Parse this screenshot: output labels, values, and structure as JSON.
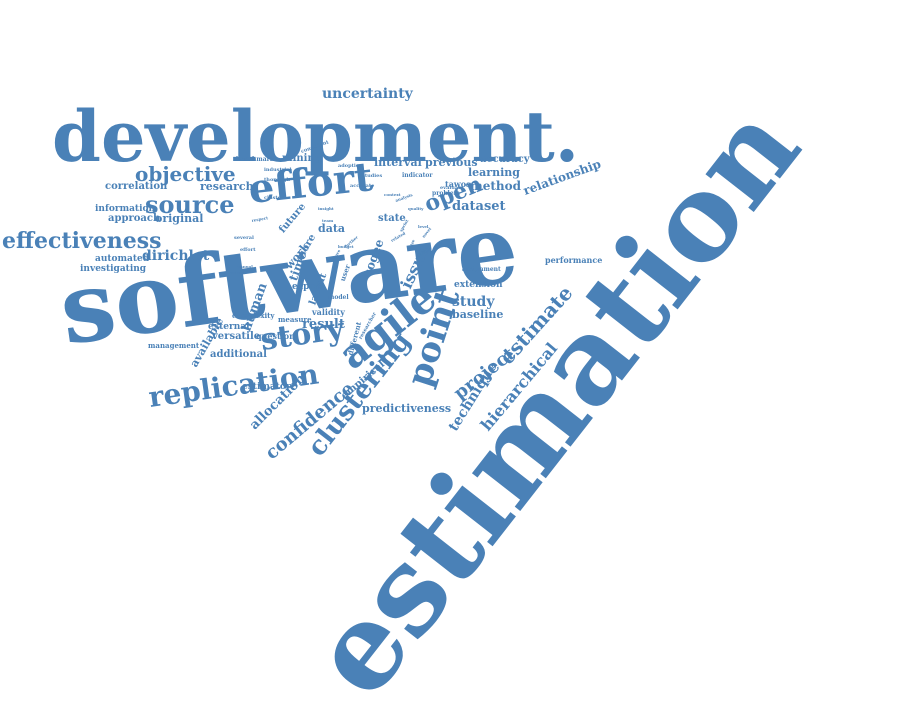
{
  "word_color": "#4a81b7",
  "words": [
    {
      "text": "estimation"
    },
    {
      "text": "software"
    },
    {
      "text": "development."
    },
    {
      "text": "effort"
    },
    {
      "text": "agile"
    },
    {
      "text": "story"
    },
    {
      "text": "replication"
    },
    {
      "text": "effectiveness"
    },
    {
      "text": "point"
    },
    {
      "text": "clustering"
    },
    {
      "text": "source"
    },
    {
      "text": "objective"
    },
    {
      "text": "open"
    },
    {
      "text": "estimate"
    },
    {
      "text": "project"
    },
    {
      "text": "confidence"
    },
    {
      "text": "hierarchical"
    },
    {
      "text": "technique"
    },
    {
      "text": "uncertainty"
    },
    {
      "text": "dirichlet"
    },
    {
      "text": "allocation"
    },
    {
      "text": "relationship"
    },
    {
      "text": "dataset"
    },
    {
      "text": "study"
    },
    {
      "text": "issue"
    },
    {
      "text": "result"
    },
    {
      "text": "method"
    },
    {
      "text": "learning"
    },
    {
      "text": "previous"
    },
    {
      "text": "interval"
    },
    {
      "text": "accuracy"
    },
    {
      "text": "mining"
    },
    {
      "text": "research"
    },
    {
      "text": "correlation"
    },
    {
      "text": "original"
    },
    {
      "text": "approach"
    },
    {
      "text": "information"
    },
    {
      "text": "automated"
    },
    {
      "text": "investigating"
    },
    {
      "text": "data"
    },
    {
      "text": "state"
    },
    {
      "text": "predictiveness"
    },
    {
      "text": "empirical"
    },
    {
      "text": "baseline"
    },
    {
      "text": "extension"
    },
    {
      "text": "performance"
    },
    {
      "text": "human"
    },
    {
      "text": "available"
    },
    {
      "text": "versatile"
    },
    {
      "text": "additional"
    },
    {
      "text": "external"
    },
    {
      "text": "estimator"
    },
    {
      "text": "question"
    },
    {
      "text": "complexity"
    },
    {
      "text": "management"
    },
    {
      "text": "measure"
    },
    {
      "text": "validity"
    },
    {
      "text": "expert"
    },
    {
      "text": "latent"
    },
    {
      "text": "work"
    },
    {
      "text": "time"
    },
    {
      "text": "more"
    },
    {
      "text": "future"
    },
    {
      "text": "cogee"
    },
    {
      "text": "different"
    },
    {
      "text": "user"
    },
    {
      "text": "model"
    },
    {
      "text": "tawos"
    },
    {
      "text": "benchmark"
    },
    {
      "text": "industrial"
    },
    {
      "text": "thorough"
    },
    {
      "text": "cluster"
    },
    {
      "text": "consistent"
    },
    {
      "text": "adoption"
    },
    {
      "text": "studies"
    },
    {
      "text": "accurate"
    },
    {
      "text": "indicator"
    },
    {
      "text": "problem"
    },
    {
      "text": "assignment"
    },
    {
      "text": "researcher"
    },
    {
      "text": "evaluate"
    },
    {
      "text": "several"
    },
    {
      "text": "respect"
    },
    {
      "text": "insight"
    },
    {
      "text": "quality"
    },
    {
      "text": "effort"
    },
    {
      "text": "manual"
    },
    {
      "text": "budget"
    },
    {
      "text": "aware"
    },
    {
      "text": "further"
    },
    {
      "text": "team"
    },
    {
      "text": "related"
    },
    {
      "text": "sprint"
    },
    {
      "text": "level"
    },
    {
      "text": "novel"
    },
    {
      "text": "feature"
    },
    {
      "text": "context"
    },
    {
      "text": "analysis"
    },
    {
      "text": "size"
    },
    {
      "text": "issues"
    }
  ]
}
